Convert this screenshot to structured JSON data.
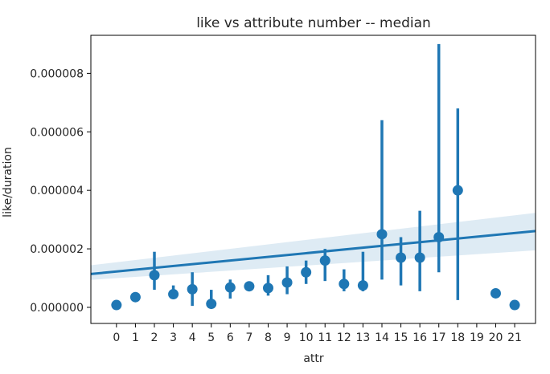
{
  "chart_data": {
    "type": "scatter",
    "title": "like vs attribute number -- median",
    "xlabel": "attr",
    "ylabel": "like/duration",
    "x_ticks": [
      "0",
      "1",
      "2",
      "3",
      "4",
      "5",
      "6",
      "7",
      "8",
      "9",
      "10",
      "11",
      "12",
      "13",
      "14",
      "15",
      "16",
      "17",
      "18",
      "19",
      "20",
      "21"
    ],
    "y_ticks": [
      "0.000000",
      "0.000002",
      "0.000004",
      "0.000006",
      "0.000008"
    ],
    "xlim": [
      -1.35,
      22.1
    ],
    "ylim": [
      -5.5e-07,
      9.3e-06
    ],
    "grid": false,
    "color": "#1f77b4",
    "series": [
      {
        "values": [
          {
            "x": 0,
            "y": 8e-08,
            "lo": 8e-08,
            "hi": 8e-08
          },
          {
            "x": 1,
            "y": 3.5e-07,
            "lo": 3.5e-07,
            "hi": 3.5e-07
          },
          {
            "x": 2,
            "y": 1.1e-06,
            "lo": 6e-07,
            "hi": 1.9e-06
          },
          {
            "x": 3,
            "y": 4.5e-07,
            "lo": 3e-07,
            "hi": 7.5e-07
          },
          {
            "x": 4,
            "y": 6.2e-07,
            "lo": 5e-08,
            "hi": 1.2e-06
          },
          {
            "x": 5,
            "y": 1.2e-07,
            "lo": 0.0,
            "hi": 6e-07
          },
          {
            "x": 6,
            "y": 6.8e-07,
            "lo": 3e-07,
            "hi": 9.5e-07
          },
          {
            "x": 7,
            "y": 7.2e-07,
            "lo": 6e-07,
            "hi": 8.5e-07
          },
          {
            "x": 8,
            "y": 6.6e-07,
            "lo": 4e-07,
            "hi": 1.1e-06
          },
          {
            "x": 9,
            "y": 8.5e-07,
            "lo": 4.5e-07,
            "hi": 1.4e-06
          },
          {
            "x": 10,
            "y": 1.2e-06,
            "lo": 8e-07,
            "hi": 1.6e-06
          },
          {
            "x": 11,
            "y": 1.6e-06,
            "lo": 9e-07,
            "hi": 2e-06
          },
          {
            "x": 12,
            "y": 8e-07,
            "lo": 5.5e-07,
            "hi": 1.3e-06
          },
          {
            "x": 13,
            "y": 7.5e-07,
            "lo": 5.5e-07,
            "hi": 1.9e-06
          },
          {
            "x": 14,
            "y": 2.5e-06,
            "lo": 9.5e-07,
            "hi": 6.4e-06
          },
          {
            "x": 15,
            "y": 1.7e-06,
            "lo": 7.5e-07,
            "hi": 2.4e-06
          },
          {
            "x": 16,
            "y": 1.7e-06,
            "lo": 5.5e-07,
            "hi": 3.3e-06
          },
          {
            "x": 17,
            "y": 2.4e-06,
            "lo": 1.2e-06,
            "hi": 9e-06
          },
          {
            "x": 18,
            "y": 4e-06,
            "lo": 2.5e-07,
            "hi": 6.8e-06
          },
          {
            "x": 20,
            "y": 4.8e-07,
            "lo": 4.8e-07,
            "hi": 4.8e-07
          },
          {
            "x": 21,
            "y": 8e-08,
            "lo": 8e-08,
            "hi": 8e-08
          }
        ]
      }
    ],
    "regression": {
      "x": [
        -1.35,
        22.1
      ],
      "y": [
        1.14e-06,
        2.61e-06
      ],
      "ci_lo": [
        9.4e-07,
        1.95e-06
      ],
      "ci_hi": [
        1.44e-06,
        3.23e-06
      ]
    }
  }
}
